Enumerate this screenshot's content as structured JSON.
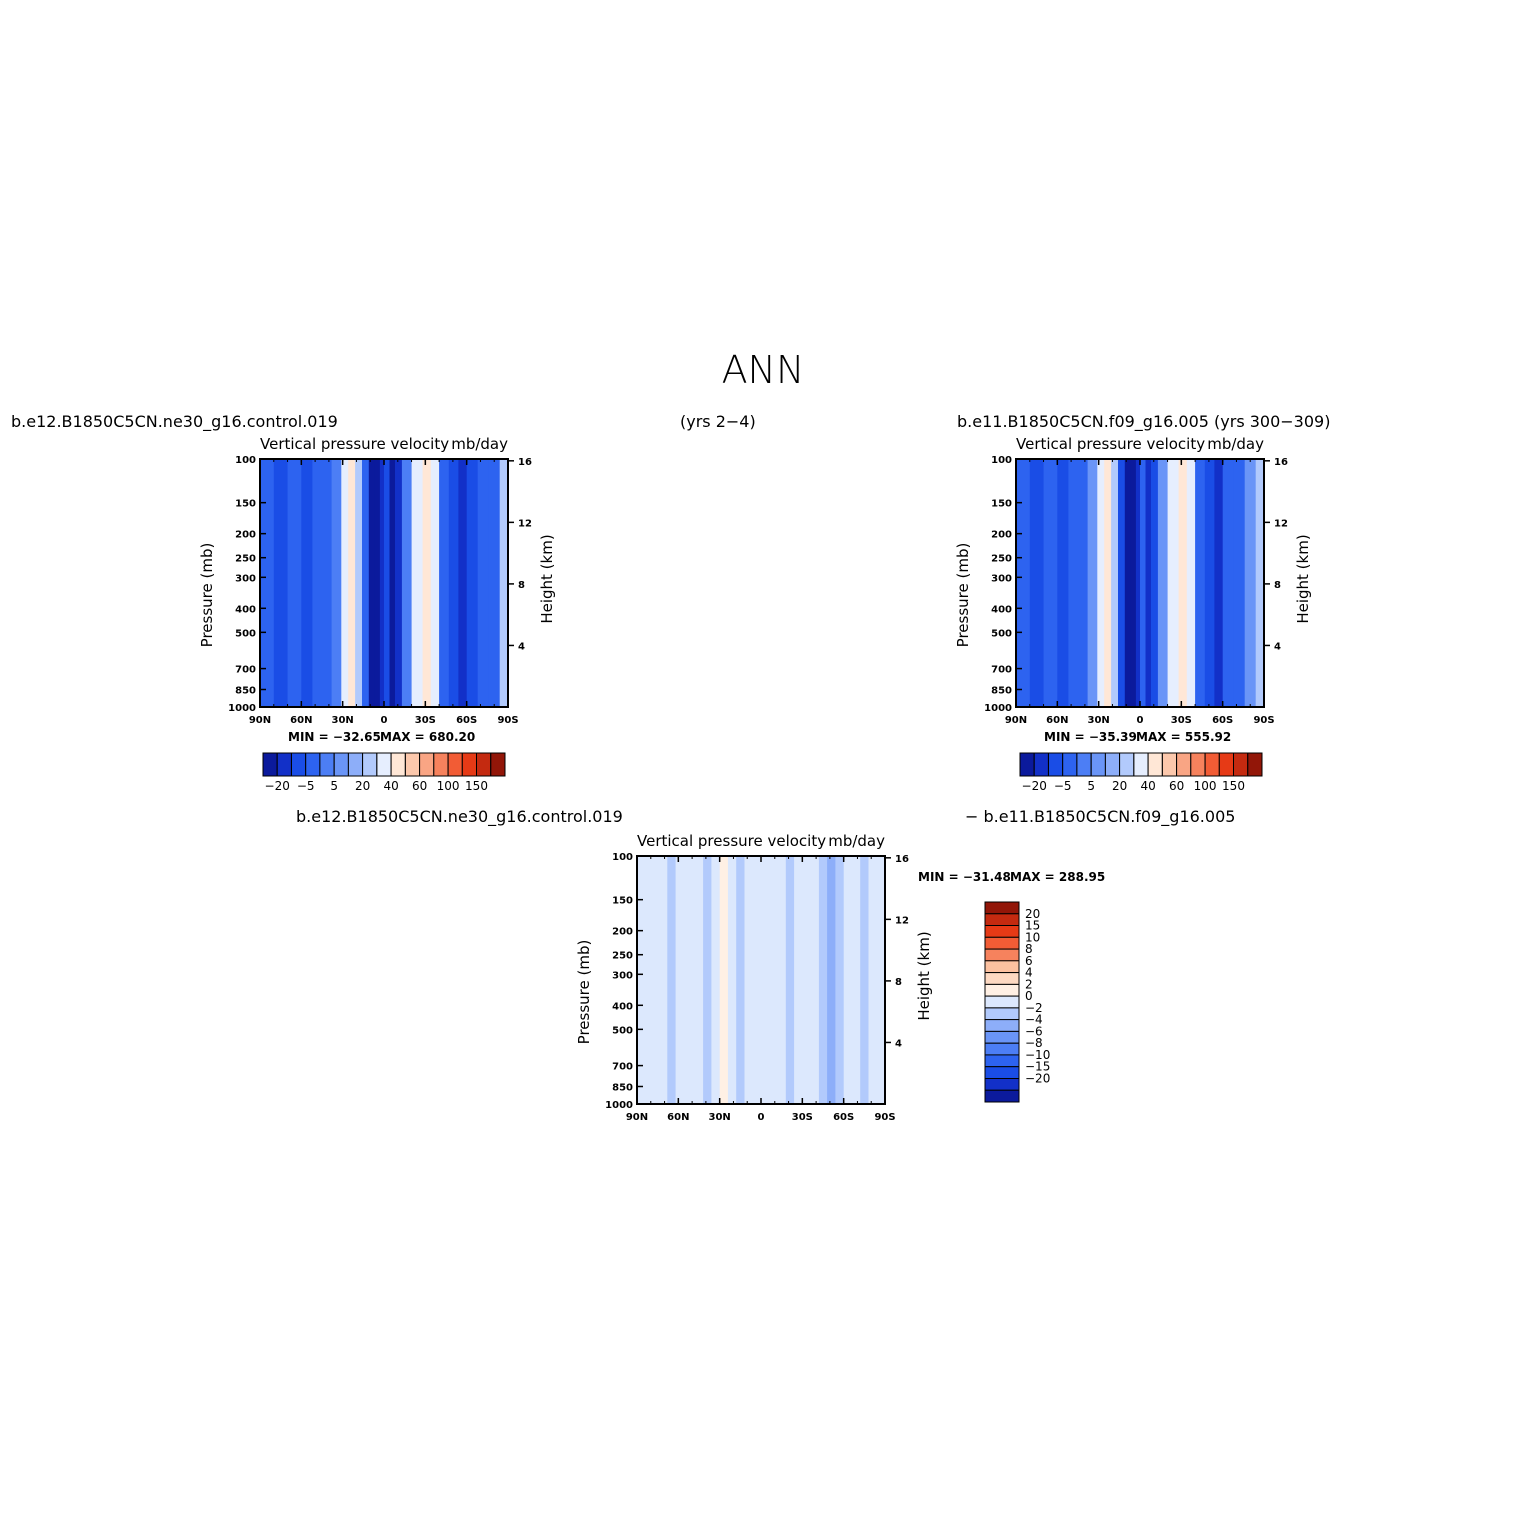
{
  "page": {
    "title": "ANN",
    "case1_label": "b.e12.B1850C5CN.ne30_g16.control.019",
    "case1_years": "(yrs 2−4)",
    "case2_label": "b.e11.B1850C5CN.f09_g16.005 (yrs 300−309)",
    "diff_label_left": "b.e12.B1850C5CN.ne30_g16.control.019",
    "diff_label_right": "− b.e11.B1850C5CN.f09_g16.005"
  },
  "colors": {
    "main_scale": [
      "#0b1a9c",
      "#1230c8",
      "#1a4de6",
      "#2d63f0",
      "#4c7ef5",
      "#6a95f7",
      "#8daef9",
      "#b2cafc",
      "#e6eefe",
      "#ffe7d6",
      "#fcc8ac",
      "#f9a584",
      "#f6825d",
      "#f25c35",
      "#e63a16",
      "#c42a10",
      "#921608"
    ],
    "diff_scale": [
      "#0b1a9c",
      "#1230c8",
      "#1a4de6",
      "#2d63f0",
      "#4c7ef5",
      "#6a95f7",
      "#8daef9",
      "#b2cafc",
      "#dce8fd",
      "#fff0e4",
      "#fdd9c2",
      "#fcc1a0",
      "#f6825d",
      "#f25c35",
      "#e63a16",
      "#c42a10",
      "#921608"
    ]
  },
  "chart_data": [
    {
      "type": "heatmap",
      "title": "Vertical pressure velocity",
      "units": "mb/day",
      "ylabel": "Pressure (mb)",
      "ylabel_right": "Height (km)",
      "xticks": [
        "90N",
        "60N",
        "30N",
        "0",
        "30S",
        "60S",
        "90S"
      ],
      "yticks": [
        100,
        150,
        200,
        250,
        300,
        400,
        500,
        700,
        850,
        1000
      ],
      "yticks_right": [
        16,
        12,
        8,
        4
      ],
      "min_label": "MIN = −32.65",
      "max_label": "MAX = 680.20",
      "min": -32.65,
      "max": 680.2,
      "colorbar_labels": [
        "−20",
        "−5",
        "5",
        "20",
        "40",
        "60",
        "100",
        "150"
      ],
      "columns": [
        {
          "lat": 90,
          "v": -8
        },
        {
          "lat": 80,
          "v": -11
        },
        {
          "lat": 70,
          "v": -9
        },
        {
          "lat": 60,
          "v": -12
        },
        {
          "lat": 52,
          "v": -8
        },
        {
          "lat": 45,
          "v": -10
        },
        {
          "lat": 38,
          "v": -3
        },
        {
          "lat": 31,
          "v": 6
        },
        {
          "lat": 26,
          "v": 12
        },
        {
          "lat": 21,
          "v": 3
        },
        {
          "lat": 16,
          "v": -10
        },
        {
          "lat": 11,
          "v": -25
        },
        {
          "lat": 7,
          "v": -30
        },
        {
          "lat": 3,
          "v": -18
        },
        {
          "lat": 0,
          "v": -12
        },
        {
          "lat": -4,
          "v": -22
        },
        {
          "lat": -8,
          "v": -16
        },
        {
          "lat": -13,
          "v": -4
        },
        {
          "lat": -20,
          "v": 6
        },
        {
          "lat": -28,
          "v": 13
        },
        {
          "lat": -34,
          "v": 7
        },
        {
          "lat": -40,
          "v": -8
        },
        {
          "lat": -47,
          "v": -14
        },
        {
          "lat": -54,
          "v": -18
        },
        {
          "lat": -60,
          "v": -12
        },
        {
          "lat": -68,
          "v": -8
        },
        {
          "lat": -76,
          "v": -6
        },
        {
          "lat": -84,
          "v": 2
        },
        {
          "lat": -90,
          "v": -4
        }
      ]
    },
    {
      "type": "heatmap",
      "title": "Vertical pressure velocity",
      "units": "mb/day",
      "ylabel": "Pressure (mb)",
      "ylabel_right": "Height (km)",
      "xticks": [
        "90N",
        "60N",
        "30N",
        "0",
        "30S",
        "60S",
        "90S"
      ],
      "yticks": [
        100,
        150,
        200,
        250,
        300,
        400,
        500,
        700,
        850,
        1000
      ],
      "yticks_right": [
        16,
        12,
        8,
        4
      ],
      "min_label": "MIN = −35.39",
      "max_label": "MAX = 555.92",
      "min": -35.39,
      "max": 555.92,
      "colorbar_labels": [
        "−20",
        "−5",
        "5",
        "20",
        "40",
        "60",
        "100",
        "150"
      ],
      "columns": [
        {
          "lat": 90,
          "v": -9
        },
        {
          "lat": 80,
          "v": -12
        },
        {
          "lat": 70,
          "v": -10
        },
        {
          "lat": 60,
          "v": -14
        },
        {
          "lat": 52,
          "v": -9
        },
        {
          "lat": 45,
          "v": -8
        },
        {
          "lat": 38,
          "v": -2
        },
        {
          "lat": 31,
          "v": 7
        },
        {
          "lat": 26,
          "v": 12
        },
        {
          "lat": 21,
          "v": 2
        },
        {
          "lat": 16,
          "v": -12
        },
        {
          "lat": 11,
          "v": -26
        },
        {
          "lat": 7,
          "v": -31
        },
        {
          "lat": 3,
          "v": -18
        },
        {
          "lat": 0,
          "v": -10
        },
        {
          "lat": -4,
          "v": -20
        },
        {
          "lat": -8,
          "v": -14
        },
        {
          "lat": -13,
          "v": -2
        },
        {
          "lat": -20,
          "v": 8
        },
        {
          "lat": -28,
          "v": 13
        },
        {
          "lat": -34,
          "v": 9
        },
        {
          "lat": -40,
          "v": -6
        },
        {
          "lat": -47,
          "v": -12
        },
        {
          "lat": -54,
          "v": -16
        },
        {
          "lat": -60,
          "v": -10
        },
        {
          "lat": -68,
          "v": -7
        },
        {
          "lat": -76,
          "v": -2
        },
        {
          "lat": -84,
          "v": 4
        },
        {
          "lat": -90,
          "v": -4
        }
      ]
    },
    {
      "type": "heatmap",
      "title": "Vertical pressure velocity",
      "units": "mb/day",
      "ylabel": "Pressure (mb)",
      "ylabel_right": "Height (km)",
      "xticks": [
        "90N",
        "60N",
        "30N",
        "0",
        "30S",
        "60S",
        "90S"
      ],
      "yticks": [
        100,
        150,
        200,
        250,
        300,
        400,
        500,
        700,
        850,
        1000
      ],
      "yticks_right": [
        16,
        12,
        8,
        4
      ],
      "min_label": "MIN = −31.48",
      "max_label": "MAX = 288.95",
      "min": -31.48,
      "max": 288.95,
      "colorbar_labels": [
        "20",
        "15",
        "10",
        "8",
        "6",
        "4",
        "2",
        "0",
        "−2",
        "−4",
        "−6",
        "−8",
        "−10",
        "−15",
        "−20"
      ],
      "columns": [
        {
          "lat": 90,
          "v": 1
        },
        {
          "lat": 82,
          "v": 0.5
        },
        {
          "lat": 75,
          "v": 1.5
        },
        {
          "lat": 68,
          "v": -1
        },
        {
          "lat": 62,
          "v": 1
        },
        {
          "lat": 55,
          "v": 1.5
        },
        {
          "lat": 48,
          "v": 0.5
        },
        {
          "lat": 42,
          "v": -1
        },
        {
          "lat": 36,
          "v": 1
        },
        {
          "lat": 30,
          "v": 2
        },
        {
          "lat": 24,
          "v": 0.5
        },
        {
          "lat": 18,
          "v": -1
        },
        {
          "lat": 12,
          "v": 1
        },
        {
          "lat": 6,
          "v": 0.5
        },
        {
          "lat": 0,
          "v": 1
        },
        {
          "lat": -6,
          "v": 1.5
        },
        {
          "lat": -12,
          "v": 0.5
        },
        {
          "lat": -18,
          "v": -1
        },
        {
          "lat": -24,
          "v": 0.5
        },
        {
          "lat": -30,
          "v": 1
        },
        {
          "lat": -36,
          "v": 0.5
        },
        {
          "lat": -42,
          "v": -1.5
        },
        {
          "lat": -48,
          "v": -2.5
        },
        {
          "lat": -54,
          "v": -1.5
        },
        {
          "lat": -60,
          "v": 0.5
        },
        {
          "lat": -66,
          "v": 1
        },
        {
          "lat": -72,
          "v": -1
        },
        {
          "lat": -78,
          "v": 0.5
        },
        {
          "lat": -84,
          "v": 1
        },
        {
          "lat": -90,
          "v": 0.5
        }
      ]
    }
  ]
}
